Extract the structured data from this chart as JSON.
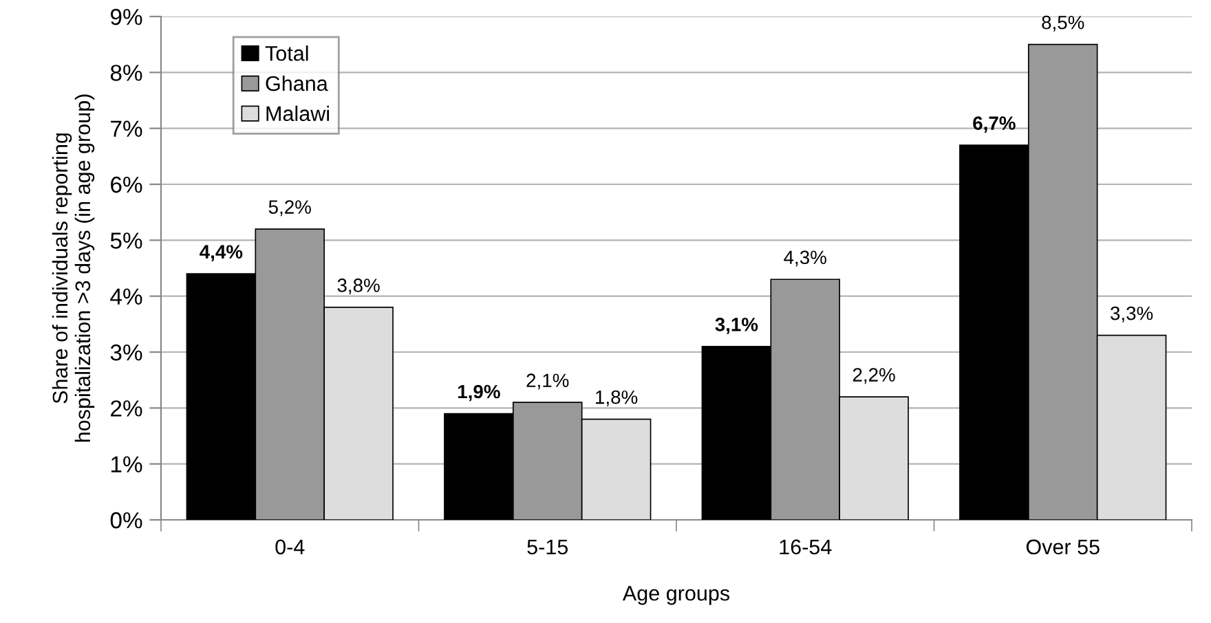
{
  "chart_data": {
    "type": "bar",
    "xlabel": "Age groups",
    "ylabel": "Share of individuals reporting\nhospitalization >3 days (in age group)",
    "categories": [
      "0-4",
      "5-15",
      "16-54",
      "Over 55"
    ],
    "series": [
      {
        "name": "Total",
        "color": "#000000",
        "values": [
          4.4,
          1.9,
          3.1,
          6.7
        ],
        "value_labels": [
          "4,4%",
          "1,9%",
          "3,1%",
          "6,7%"
        ]
      },
      {
        "name": "Ghana",
        "color": "#999999",
        "values": [
          5.2,
          2.1,
          4.3,
          8.5
        ],
        "value_labels": [
          "5,2%",
          "2,1%",
          "4,3%",
          "8,5%"
        ]
      },
      {
        "name": "Malawi",
        "color": "#dddddd",
        "values": [
          3.8,
          1.8,
          2.2,
          3.3
        ],
        "value_labels": [
          "3,8%",
          "1,8%",
          "2,2%",
          "3,3%"
        ]
      }
    ],
    "ylim": [
      0,
      9
    ],
    "yticks": [
      {
        "value": 0,
        "label": "0%"
      },
      {
        "value": 1,
        "label": "1%"
      },
      {
        "value": 2,
        "label": "2%"
      },
      {
        "value": 3,
        "label": "3%"
      },
      {
        "value": 4,
        "label": "4%"
      },
      {
        "value": 5,
        "label": "5%"
      },
      {
        "value": 6,
        "label": "6%"
      },
      {
        "value": 7,
        "label": "7%"
      },
      {
        "value": 8,
        "label": "8%"
      },
      {
        "value": 9,
        "label": "9%"
      }
    ],
    "grid": "y",
    "legend": "top left"
  }
}
